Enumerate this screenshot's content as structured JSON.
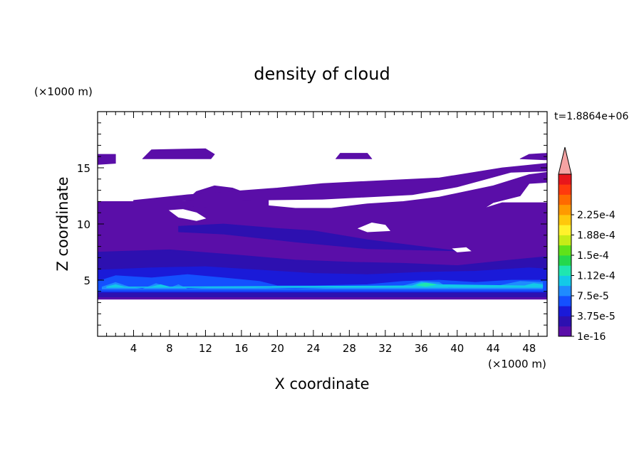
{
  "chart_data": {
    "type": "heatmap",
    "title": "density of cloud",
    "xlabel": "X coordinate",
    "ylabel": "Z coordinate",
    "x_unit": "(×1000 m)",
    "y_unit": "(×1000 m)",
    "time_label": "t=1.8864e+06",
    "xlim": [
      0,
      50
    ],
    "ylim": [
      0,
      20
    ],
    "x_ticks": [
      "4",
      "8",
      "12",
      "16",
      "20",
      "24",
      "28",
      "32",
      "36",
      "40",
      "44",
      "48"
    ],
    "y_ticks": [
      "5",
      "10",
      "15"
    ],
    "colorbar": {
      "labels": [
        "1e-16",
        "3.75e-5",
        "7.5e-5",
        "1.12e-4",
        "1.5e-4",
        "1.88e-4",
        "2.25e-4"
      ],
      "colors": [
        "#5a0ea8",
        "#2d10b0",
        "#1a1ad8",
        "#1450ff",
        "#1f8bff",
        "#13c9e8",
        "#1fe6b0",
        "#24d84c",
        "#5fe21a",
        "#c6ec17",
        "#fff22b",
        "#ffc80c",
        "#ff9a00",
        "#ff6a00",
        "#ff3a0d",
        "#e8161b"
      ],
      "over_color": "#f5a3a3"
    },
    "regions": [
      {
        "level": 1,
        "polygon": [
          [
            0,
            12
          ],
          [
            16,
            12
          ],
          [
            18,
            11.7
          ],
          [
            22,
            11.4
          ],
          [
            26,
            11.4
          ],
          [
            30,
            11.8
          ],
          [
            34,
            12
          ],
          [
            38,
            12.4
          ],
          [
            44,
            13.4
          ],
          [
            48,
            14.4
          ],
          [
            50,
            14.6
          ],
          [
            50,
            13.7
          ],
          [
            48,
            13.6
          ],
          [
            47,
            12.5
          ],
          [
            44,
            11.9
          ],
          [
            43,
            11.4
          ],
          [
            45,
            11.9
          ],
          [
            50,
            11.9
          ],
          [
            50,
            3.3
          ],
          [
            0,
            3.3
          ]
        ]
      },
      {
        "level": 1,
        "polygon": [
          [
            9.5,
            11.8
          ],
          [
            11,
            12.9
          ],
          [
            13,
            13.4
          ],
          [
            15,
            13.2
          ],
          [
            17,
            12.6
          ],
          [
            19,
            12.1
          ],
          [
            19,
            11.4
          ],
          [
            14,
            11.4
          ],
          [
            9.5,
            11.6
          ]
        ]
      },
      {
        "level": 1,
        "polygon": [
          [
            4,
            12
          ],
          [
            25,
            12.2
          ],
          [
            35,
            12.6
          ],
          [
            40,
            13.3
          ],
          [
            46,
            14.6
          ],
          [
            50,
            14.7
          ],
          [
            50,
            15.4
          ],
          [
            45,
            15
          ],
          [
            38,
            14.1
          ],
          [
            30,
            13.8
          ],
          [
            25,
            13.6
          ],
          [
            20,
            13.2
          ],
          [
            10,
            12.6
          ],
          [
            4,
            12.1
          ]
        ]
      },
      {
        "level": 1,
        "polygon": [
          [
            0,
            15.3
          ],
          [
            2,
            15.4
          ],
          [
            2,
            16.2
          ],
          [
            0,
            16.2
          ]
        ]
      },
      {
        "level": 1,
        "polygon": [
          [
            5,
            15.8
          ],
          [
            6,
            16.6
          ],
          [
            12,
            16.7
          ],
          [
            13,
            16.2
          ],
          [
            12.6,
            15.8
          ]
        ]
      },
      {
        "level": 1,
        "polygon": [
          [
            26.5,
            15.8
          ],
          [
            27,
            16.3
          ],
          [
            30,
            16.3
          ],
          [
            30.5,
            15.8
          ]
        ]
      },
      {
        "level": 1,
        "polygon": [
          [
            47,
            15.8
          ],
          [
            48,
            16.2
          ],
          [
            50,
            16.3
          ],
          [
            50,
            15.7
          ]
        ]
      },
      {
        "level": 2,
        "polygon": [
          [
            0,
            7.5
          ],
          [
            8,
            7.7
          ],
          [
            16,
            7.2
          ],
          [
            22,
            6.8
          ],
          [
            28,
            6.6
          ],
          [
            34,
            6.5
          ],
          [
            40,
            6.3
          ],
          [
            46,
            6.8
          ],
          [
            50,
            7.1
          ],
          [
            50,
            3.5
          ],
          [
            0,
            3.5
          ]
        ]
      },
      {
        "level": 2,
        "polygon": [
          [
            9,
            9.8
          ],
          [
            14,
            10
          ],
          [
            20,
            9.6
          ],
          [
            24,
            9.4
          ],
          [
            30,
            8.6
          ],
          [
            36,
            8
          ],
          [
            40,
            7.6
          ],
          [
            30,
            7.8
          ],
          [
            22,
            8.4
          ],
          [
            14,
            9.1
          ],
          [
            9,
            9.3
          ]
        ]
      },
      {
        "level": 3,
        "polygon": [
          [
            0,
            5.9
          ],
          [
            6,
            6.1
          ],
          [
            12,
            6.2
          ],
          [
            18,
            5.9
          ],
          [
            24,
            5.6
          ],
          [
            30,
            5.5
          ],
          [
            36,
            5.7
          ],
          [
            42,
            5.8
          ],
          [
            48,
            6.1
          ],
          [
            50,
            6
          ],
          [
            50,
            3.9
          ],
          [
            0,
            3.9
          ]
        ]
      },
      {
        "level": 4,
        "polygon": [
          [
            0,
            4.9
          ],
          [
            2,
            5.4
          ],
          [
            6,
            5.2
          ],
          [
            10,
            5.5
          ],
          [
            14,
            5.2
          ],
          [
            18,
            4.9
          ],
          [
            20,
            4.5
          ],
          [
            24,
            4.5
          ],
          [
            30,
            4.6
          ],
          [
            34,
            4.9
          ],
          [
            38,
            5
          ],
          [
            42,
            4.8
          ],
          [
            46,
            5
          ],
          [
            50,
            5
          ],
          [
            50,
            4
          ],
          [
            0,
            4
          ]
        ]
      },
      {
        "level": 5,
        "polygon": [
          [
            0.5,
            4.4
          ],
          [
            2,
            4.8
          ],
          [
            3.5,
            4.4
          ],
          [
            5,
            4.2
          ],
          [
            6.5,
            4.7
          ],
          [
            8,
            4.3
          ],
          [
            9,
            4.6
          ],
          [
            10,
            4.2
          ],
          [
            14,
            4.4
          ],
          [
            18,
            4.3
          ],
          [
            22,
            4.2
          ],
          [
            26,
            4.3
          ],
          [
            30,
            4.4
          ],
          [
            34,
            4.5
          ],
          [
            36,
            4.9
          ],
          [
            38,
            4.8
          ],
          [
            39,
            4.3
          ],
          [
            44,
            4.4
          ],
          [
            47,
            4.9
          ],
          [
            49.5,
            4.8
          ],
          [
            49.5,
            4.2
          ],
          [
            0.5,
            4.2
          ]
        ]
      },
      {
        "level": 6,
        "polygon": [
          [
            1,
            4.4
          ],
          [
            2,
            4.6
          ],
          [
            3,
            4.4
          ],
          [
            6,
            4.4
          ],
          [
            7,
            4.6
          ],
          [
            8,
            4.4
          ],
          [
            35,
            4.5
          ],
          [
            36,
            4.8
          ],
          [
            38,
            4.6
          ],
          [
            47.5,
            4.5
          ],
          [
            48.5,
            4.7
          ],
          [
            49.5,
            4.6
          ],
          [
            49.5,
            4.35
          ],
          [
            1,
            4.35
          ]
        ]
      },
      {
        "level": 7,
        "polygon": [
          [
            35.5,
            4.55
          ],
          [
            36.5,
            4.75
          ],
          [
            37.6,
            4.6
          ],
          [
            36.5,
            4.45
          ]
        ]
      }
    ],
    "holes": [
      {
        "polygon": [
          [
            8,
            11.2
          ],
          [
            9,
            10.6
          ],
          [
            11,
            10.3
          ],
          [
            12,
            10.5
          ],
          [
            11,
            11
          ],
          [
            9.5,
            11.3
          ]
        ]
      },
      {
        "polygon": [
          [
            29,
            9.6
          ],
          [
            30.5,
            10.1
          ],
          [
            32,
            9.9
          ],
          [
            32.5,
            9.4
          ],
          [
            30,
            9.3
          ]
        ]
      },
      {
        "polygon": [
          [
            39.5,
            7.8
          ],
          [
            41,
            7.9
          ],
          [
            41.5,
            7.6
          ],
          [
            40,
            7.5
          ]
        ]
      }
    ]
  }
}
